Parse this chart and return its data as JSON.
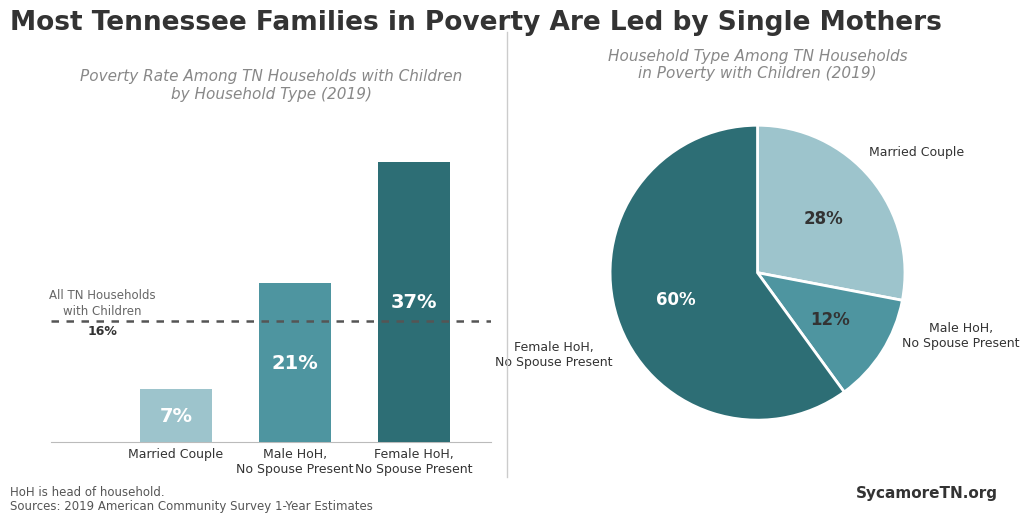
{
  "title": "Most Tennessee Families in Poverty Are Led by Single Mothers",
  "title_fontsize": 19,
  "bar_title": "Poverty Rate Among TN Households with Children\nby Household Type (2019)",
  "pie_title": "Household Type Among TN Households\nin Poverty with Children (2019)",
  "bar_categories": [
    "Married Couple",
    "Male HoH,\nNo Spouse Present",
    "Female HoH,\nNo Spouse Present"
  ],
  "bar_values": [
    7,
    21,
    37
  ],
  "bar_colors": [
    "#9dc4cc",
    "#4e95a0",
    "#2d6e75"
  ],
  "reference_line_value": 16,
  "reference_label_top": "All TN Households\nwith Children",
  "reference_label_pct": "16%",
  "pie_values": [
    28,
    12,
    60
  ],
  "pie_colors": [
    "#9dc4cc",
    "#4e95a0",
    "#2d6e75"
  ],
  "pie_pct_colors": [
    "#333333",
    "#333333",
    "#ffffff"
  ],
  "pie_ext_labels": [
    "Married Couple",
    "Male HoH,\nNo Spouse Present",
    "Female HoH,\nNo Spouse Present"
  ],
  "footnote_line1": "HoH is head of household.",
  "footnote_line2": "Sources: 2019 American Community Survey 1-Year Estimates",
  "watermark": "SycamoreTN.org",
  "bg_color": "#ffffff",
  "text_color": "#333333",
  "subtitle_color": "#888888",
  "bar_label_fontsize": 14,
  "subtitle_fontsize": 11
}
